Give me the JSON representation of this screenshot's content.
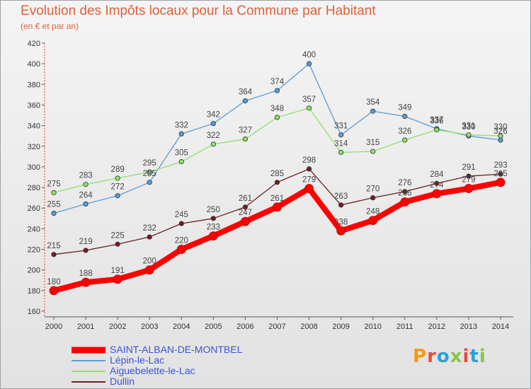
{
  "header": {
    "title": "Evolution des Impôts locaux pour la Commune par Habitant",
    "subtitle": "(en € et par an)"
  },
  "logo": {
    "text": "Proxiti",
    "colors": [
      "#f39c12",
      "#e74c3c",
      "#2e9fd6",
      "#8bc34a",
      "#e74c3c",
      "#2e9fd6",
      "#8bc34a"
    ]
  },
  "chart_data": {
    "type": "line",
    "x": [
      "2000",
      "2001",
      "2002",
      "2003",
      "2004",
      "2005",
      "2006",
      "2007",
      "2008",
      "2009",
      "2010",
      "2011",
      "2012",
      "2013",
      "2014"
    ],
    "ylim": [
      160,
      420
    ],
    "yticks": [
      160,
      180,
      200,
      220,
      240,
      260,
      280,
      300,
      320,
      340,
      360,
      380,
      400,
      420
    ],
    "grid": false,
    "legend_position": "bottom",
    "series": [
      {
        "name": "SAINT-ALBAN-DE-MONTBEL",
        "color": "#ff0000",
        "values": [
          180,
          188,
          191,
          200,
          220,
          233,
          247,
          261,
          279,
          238,
          248,
          266,
          274,
          279,
          285
        ]
      },
      {
        "name": "Lépin-le-Lac",
        "color": "#5b9bd5",
        "values": [
          255,
          264,
          272,
          285,
          332,
          342,
          364,
          374,
          400,
          331,
          354,
          349,
          337,
          330,
          326
        ]
      },
      {
        "name": "Aiguebelette-le-Lac",
        "color": "#8ee06a",
        "values": [
          275,
          283,
          289,
          295,
          305,
          322,
          327,
          348,
          357,
          314,
          315,
          326,
          336,
          331,
          330
        ]
      },
      {
        "name": "Dullin",
        "color": "#6b1f1f",
        "values": [
          215,
          219,
          225,
          232,
          245,
          250,
          261,
          285,
          298,
          263,
          270,
          276,
          284,
          291,
          293
        ]
      }
    ]
  }
}
